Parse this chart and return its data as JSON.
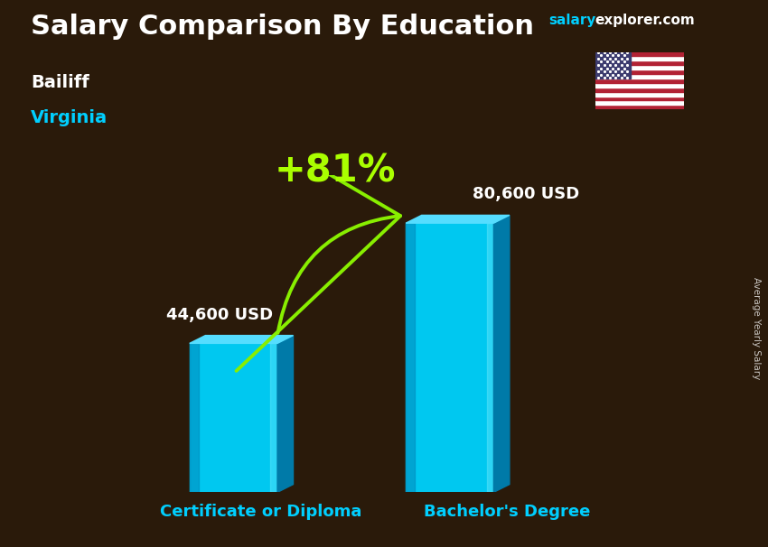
{
  "title": "Salary Comparison By Education",
  "subtitle_job": "Bailiff",
  "subtitle_location": "Virginia",
  "ylabel": "Average Yearly Salary",
  "categories": [
    "Certificate or Diploma",
    "Bachelor's Degree"
  ],
  "values": [
    44600,
    80600
  ],
  "value_labels": [
    "44,600 USD",
    "80,600 USD"
  ],
  "pct_change": "+81%",
  "bar_color_main": "#00C8F0",
  "bar_color_light": "#80EEFF",
  "bar_color_dark": "#0088BB",
  "bar_color_top": "#55DDFF",
  "bar_color_right": "#007AA8",
  "arrow_color": "#88EE00",
  "pct_color": "#AAFF00",
  "label_color": "#FFFFFF",
  "category_color": "#00CFFF",
  "title_color": "#FFFFFF",
  "subtitle_job_color": "#FFFFFF",
  "subtitle_location_color": "#00CFFF",
  "watermark_salary_color": "#00CFFF",
  "watermark_explorer_color": "#FFFFFF",
  "bg_color": "#2A1A0A",
  "bar_width": 0.13,
  "positions": [
    0.3,
    0.62
  ],
  "max_val": 95000,
  "title_fontsize": 22,
  "label_fontsize": 13,
  "category_fontsize": 13,
  "pct_fontsize": 30
}
